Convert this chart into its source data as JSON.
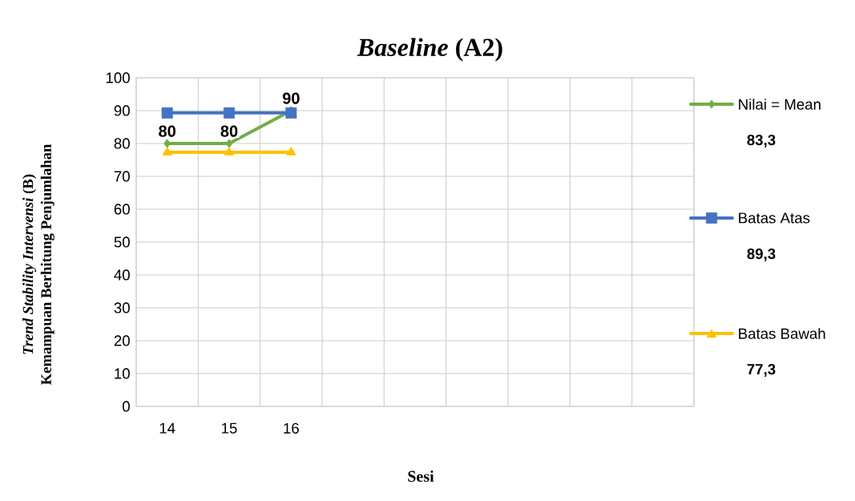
{
  "chart_data": {
    "type": "line",
    "title": "*Baseline* (A2)",
    "xlabel": "Sesi",
    "ylabel": "*Trend Stability Intervensi* (B) Kemampuan Berhitung Penjumlahan",
    "categories": [
      "14",
      "15",
      "16",
      null,
      null,
      null,
      null,
      null,
      null
    ],
    "series": [
      {
        "name": "Nilai = Mean",
        "color": "#70ad47",
        "marker": "diamond",
        "values": [
          80,
          80,
          90,
          null,
          null,
          null,
          null,
          null,
          null
        ],
        "value_labels": [
          "80",
          "80",
          "90",
          null,
          null,
          null,
          null,
          null,
          null
        ]
      },
      {
        "name": "Batas Atas",
        "color": "#4472c4",
        "marker": "square",
        "values": [
          89.3,
          89.3,
          89.3,
          null,
          null,
          null,
          null,
          null,
          null
        ]
      },
      {
        "name": "Batas Bawah",
        "color": "#ffc000",
        "marker": "triangle",
        "values": [
          77.3,
          77.3,
          77.3,
          null,
          null,
          null,
          null,
          null,
          null
        ]
      }
    ],
    "annotations": [
      "83,3",
      "89,3",
      "77,3"
    ],
    "ylim": [
      0,
      100
    ],
    "yticks": [
      0,
      10,
      20,
      30,
      40,
      50,
      60,
      70,
      80,
      90,
      100
    ],
    "grid": true,
    "legend": "right",
    "line_style": "solid"
  }
}
